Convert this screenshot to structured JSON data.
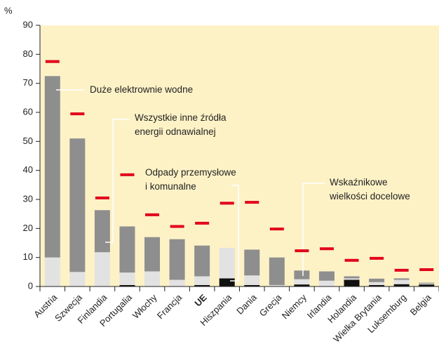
{
  "chart_data": {
    "type": "stacked-bar",
    "ylabel": "%",
    "categories": [
      "Austria",
      "Szwecja",
      "Finlandia",
      "Portugalia",
      "Włochy",
      "Francja",
      "UE",
      "Hiszpania",
      "Dania",
      "Grecja",
      "Niemcy",
      "Irlandia",
      "Holandia",
      "Wielka Brytania",
      "Luksemburg",
      "Belgia"
    ],
    "series": [
      {
        "name": "Odpady przemysłowe\ni komunalne",
        "color": "#111111",
        "values": [
          0,
          0,
          0,
          0.5,
          0,
          0,
          0.5,
          2.8,
          0.5,
          0,
          0.7,
          0,
          2.3,
          0.5,
          0.8,
          0.7
        ]
      },
      {
        "name": "Duże elektrownie wodne",
        "color": "#e2e2e2",
        "values": [
          10,
          5,
          11.8,
          4.3,
          5.2,
          2.3,
          3,
          10.5,
          3.3,
          0.5,
          1.8,
          2,
          0.5,
          1,
          1.5,
          0.3
        ]
      },
      {
        "name": "Wszystkie inne źródła\nenergii odnawialnej",
        "color": "#8e8e8e",
        "values": [
          62.5,
          46,
          14.5,
          15.9,
          11.8,
          14,
          10.6,
          0,
          8.9,
          9.5,
          3,
          3.2,
          0.7,
          1.2,
          0.5,
          0.3
        ]
      }
    ],
    "targets": {
      "name": "Wskaźnikowe\nwielkości docelowe",
      "color": "#e2001a",
      "values": [
        77.5,
        59.5,
        30.5,
        38.5,
        24.7,
        20.7,
        21.8,
        28.7,
        29,
        19.8,
        12.3,
        13,
        9,
        9.7,
        5.6,
        5.8
      ]
    },
    "bold_category": "UE",
    "ylim": [
      0,
      90
    ],
    "yticks": [
      0,
      10,
      20,
      30,
      40,
      50,
      60,
      70,
      80,
      90
    ],
    "grid": false
  }
}
